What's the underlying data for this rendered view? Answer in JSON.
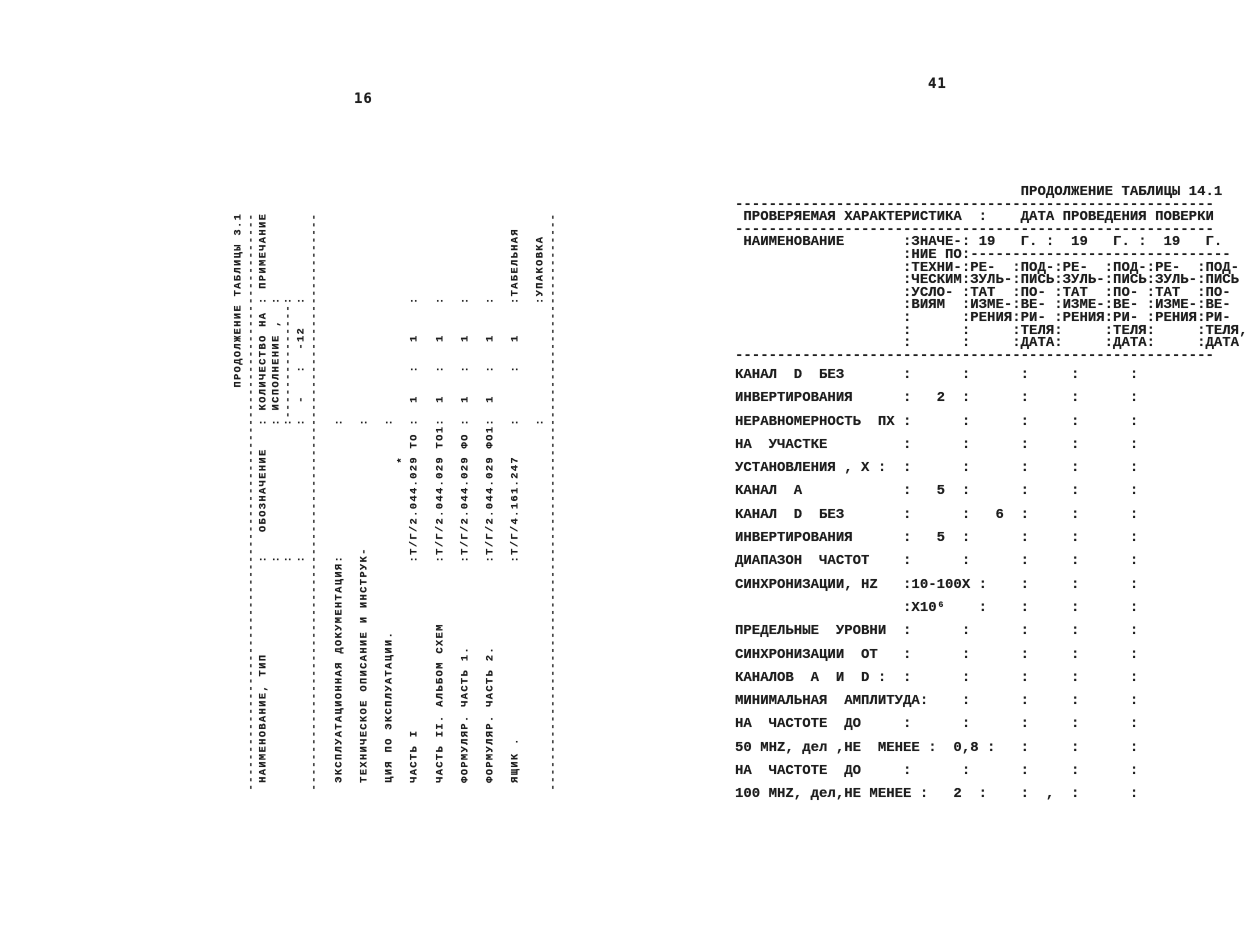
{
  "colors": {
    "ink": "#1e1e1e",
    "paper": "#ffffff"
  },
  "page_left": {
    "page_number": "16",
    "table_lines": [
      "                                                     ПРОДОЛЖЕНИЕ ТАБЛИЦЫ 3.1",
      "----------------------------------------------------------------------------",
      " НАИМЕНОВАНИЕ, ТИП            :   ОБОЗНАЧЕНИЕ   : КОЛИЧЕСТВО НА : ПРИМЕЧАНИЕ",
      "                              :                 : ИСПОЛНЕНИЕ ,  :",
      "                              :                 :---------------:",
      "                              :                 :  -   :  -12   :",
      "----------------------------------------------------------------------------",
      "",
      " ЭКСПЛУАТАЦИОННАЯ ДОКУМЕНТАЦИЯ:                 :",
      "",
      " ТЕХНИЧЕСКОЕ ОПИСАНИЕ И ИНСТРУК-                :",
      "",
      " ЦИЯ ПО ЭКСПЛУАТАЦИИ.                           :",
      "                                           *",
      " ЧАСТЬ I                      :Т/Г/2.044.029 ТО :  1   :   1    :",
      "",
      " ЧАСТЬ II. АЛЬБОМ СХЕМ        :Т/Г/2.044.029 ТО1:  1   :   1    :",
      "",
      " ФОРМУЛЯР. ЧАСТЬ 1.           :Т/Г/2.044.029 ФО :  1   :   1    :",
      "",
      " ФОРМУЛЯР. ЧАСТЬ 2.           :Т/Г/2.044.029 ФО1:  1   :   1    :",
      "",
      " ЯЩИК .                       :Т/Г/4.161.247    :      :   1    :ТАБЕЛЬНАЯ",
      "",
      "                                                :               :УПАКОВКА",
      "----------------------------------------------------------------------------"
    ],
    "table_3_1": {
      "title": "ПРОДОЛЖЕНИЕ ТАБЛИЦЫ 3.1",
      "columns": [
        "НАИМЕНОВАНИЕ, ТИП",
        "ОБОЗНАЧЕНИЕ",
        "КОЛИЧЕСТВО НА ИСПОЛНЕНИЕ , -",
        "КОЛИЧЕСТВО НА ИСПОЛНЕНИЕ , -12",
        "ПРИМЕЧАНИЕ"
      ],
      "rows": [
        [
          "ЭКСПЛУАТАЦИОННАЯ ДОКУМЕНТАЦИЯ:",
          "",
          "",
          "",
          ""
        ],
        [
          "ТЕХНИЧЕСКОЕ ОПИСАНИЕ И ИНСТРУКЦИЯ ПО ЭКСПЛУАТАЦИИ.",
          "",
          "",
          "",
          ""
        ],
        [
          "ЧАСТЬ I",
          "Т/Г/2.044.029 ТО *",
          "1",
          "1",
          ""
        ],
        [
          "ЧАСТЬ II. АЛЬБОМ СХЕМ",
          "Т/Г/2.044.029 ТО1",
          "1",
          "1",
          ""
        ],
        [
          "ФОРМУЛЯР. ЧАСТЬ 1.",
          "Т/Г/2.044.029 ФО",
          "1",
          "1",
          ""
        ],
        [
          "ФОРМУЛЯР. ЧАСТЬ 2.",
          "Т/Г/2.044.029 ФО1",
          "1",
          "1",
          ""
        ],
        [
          "ЯЩИК .",
          "Т/Г/4.161.247",
          "",
          "1",
          "ТАБЕЛЬНАЯ УПАКОВКА"
        ]
      ]
    }
  },
  "page_right": {
    "page_number": "41",
    "header_lines": [
      "                                  ПРОДОЛЖЕНИЕ ТАБЛИЦЫ 14.1",
      "---------------------------------------------------------",
      " ПРОВЕРЯЕМАЯ ХАРАКТЕРИСТИКА  :    ДАТА ПРОВЕДЕНИЯ ПОВЕРКИ",
      "---------------------------------------------------------",
      " НАИМЕНОВАНИЕ       :ЗНАЧЕ-: 19   Г. :  19   Г. :  19   Г.",
      "                    :НИЕ ПО:-------------------------------",
      "                    :ТЕХНИ-:РЕ-  :ПОД-:РЕ-  :ПОД-:РЕ-  :ПОД-",
      "                    :ЧЕСКИМ:ЗУЛЬ-:ПИСЬ:ЗУЛЬ-:ПИСЬ:ЗУЛЬ-:ПИСЬ",
      "                    :УСЛО- :ТАТ  :ПО- :ТАТ  :ПО- :ТАТ  :ПО-",
      "                    :ВИЯМ  :ИЗМЕ-:ВЕ- :ИЗМЕ-:ВЕ- :ИЗМЕ-:ВЕ-",
      "                    :      :РЕНИЯ:РИ- :РЕНИЯ:РИ- :РЕНИЯ:РИ-",
      "                    :      :     :ТЕЛЯ:     :ТЕЛЯ:     :ТЕЛЯ,",
      "                    :      :     :ДАТА:     :ДАТА:     :ДАТА",
      "---------------------------------------------------------"
    ],
    "body_lines": [
      "КАНАЛ  D  БЕЗ       :      :      :     :      :",
      "ИНВЕРТИРОВАНИЯ      :   2  :      :     :      :",
      "НЕРАВНОМЕРНОСТЬ  ПХ :      :      :     :      :",
      "НА  УЧАСТКЕ         :      :      :     :      :",
      "УСТАНОВЛЕНИЯ , X :  :      :      :     :      :",
      "КАНАЛ  А            :   5  :      :     :      :",
      "КАНАЛ  D  БЕЗ       :      :   6  :     :      :",
      "ИНВЕРТИРОВАНИЯ      :   5  :      :     :      :",
      "ДИАПАЗОН  ЧАСТОТ    :      :      :     :      :",
      "СИНХРОНИЗАЦИИ, НZ   :10-100X :    :     :      :",
      "                    :X10⁶    :    :     :      :",
      "ПРЕДЕЛЬНЫЕ  УРОВНИ  :      :      :     :      :",
      "СИНХРОНИЗАЦИИ  ОТ   :      :      :     :      :",
      "КАНАЛОВ  А  И  D :  :      :      :     :      :",
      "МИНИМАЛЬНАЯ  АМПЛИТУДА:    :      :     :      :",
      "НА  ЧАСТОТЕ  ДО     :      :      :     :      :",
      "50 МНZ, дел ,НЕ  МЕНЕЕ :  0,8 :   :     :      :",
      "НА  ЧАСТОТЕ  ДО     :      :      :     :      :",
      "100 МНZ, дел,НЕ МЕНЕЕ :   2  :    :  ,  :      :"
    ],
    "table_14_1": {
      "title": "ПРОДОЛЖЕНИЕ ТАБЛИЦЫ 14.1",
      "header": [
        "ПРОВЕРЯЕМАЯ ХАРАКТЕРИСТИКА",
        "ДАТА ПРОВЕДЕНИЯ ПОВЕРКИ"
      ],
      "columns": [
        "НАИМЕНОВАНИЕ",
        "ЗНАЧЕНИЕ ПО ТЕХНИЧЕСКИМ УСЛОВИЯМ",
        "19 Г. РЕЗУЛЬТАТ ИЗМЕРЕНИЯ",
        "19 Г. ПОДПИСЬ ПОВЕРИТЕЛЯ, ДАТА",
        "19 Г. РЕЗУЛЬТАТ ИЗМЕРЕНИЯ",
        "19 Г. ПОДПИСЬ ПОВЕРИТЕЛЯ, ДАТА",
        "19 Г. РЕЗУЛЬТАТ ИЗМЕРЕНИЯ",
        "19 Г. ПОДПИСЬ ПОВЕРИТЕЛЯ, ДАТА"
      ],
      "rows": [
        [
          "КАНАЛ D БЕЗ ИНВЕРТИРОВАНИЯ",
          "2"
        ],
        [
          "НЕРАВНОМЕРНОСТЬ ПХ НА УЧАСТКЕ УСТАНОВЛЕНИЯ , X :",
          ""
        ],
        [
          "КАНАЛ А",
          "5"
        ],
        [
          "КАНАЛ D БЕЗ ИНВЕРТИРОВАНИЯ",
          "5"
        ],
        [
          "ДИАПАЗОН ЧАСТОТ СИНХРОНИЗАЦИИ, НZ",
          "10-100 X10⁶"
        ],
        [
          "ПРЕДЕЛЬНЫЕ УРОВНИ СИНХРОНИЗАЦИИ ОТ КАНАЛОВ А И D :",
          ""
        ],
        [
          "МИНИМАЛЬНАЯ АМПЛИТУДА: НА ЧАСТОТЕ ДО 50 МНZ, дел, НЕ МЕНЕЕ",
          "0,8"
        ],
        [
          "НА ЧАСТОТЕ ДО 100 МНZ, дел, НЕ МЕНЕЕ",
          "2"
        ]
      ]
    }
  }
}
